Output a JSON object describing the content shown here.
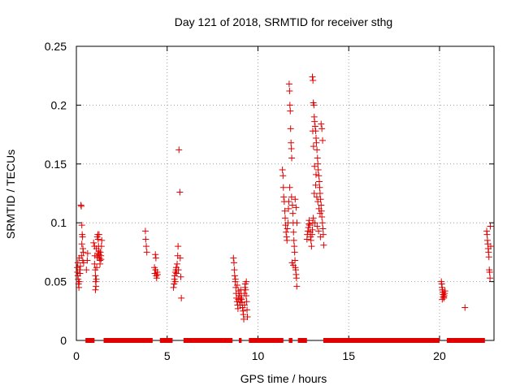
{
  "chart_data": {
    "type": "scatter",
    "title": "Day 121 of 2018, SRMTID for receiver sthg",
    "xlabel": "GPS time / hours",
    "ylabel": "SRMTID / TECUs",
    "xlim": [
      0,
      23
    ],
    "ylim": [
      0,
      0.25
    ],
    "xticks": [
      "0",
      "5",
      "10",
      "15",
      "20"
    ],
    "yticks": [
      "0",
      "0.05",
      "0.1",
      "0.15",
      "0.2",
      "0.25"
    ],
    "grid": true,
    "marker": "plus",
    "color": "#e00000",
    "series": [
      {
        "values": [
          [
            0.05,
            0.062
          ],
          [
            0.06,
            0.058
          ],
          [
            0.08,
            0.055
          ],
          [
            0.1,
            0.052
          ],
          [
            0.12,
            0.048
          ],
          [
            0.14,
            0.045
          ],
          [
            0.16,
            0.05
          ],
          [
            0.18,
            0.06
          ],
          [
            0.2,
            0.057
          ],
          [
            0.22,
            0.063
          ],
          [
            0.15,
            0.07
          ],
          [
            0.08,
            0.066
          ],
          [
            0.25,
            0.115
          ],
          [
            0.27,
            0.114
          ],
          [
            0.3,
            0.098
          ],
          [
            0.32,
            0.09
          ],
          [
            0.34,
            0.088
          ],
          [
            0.3,
            0.082
          ],
          [
            0.36,
            0.078
          ],
          [
            0.28,
            0.072
          ],
          [
            0.35,
            0.068
          ],
          [
            0.4,
            0.066
          ],
          [
            0.38,
            0.075
          ],
          [
            0.55,
            0.06
          ],
          [
            0.6,
            0.068
          ],
          [
            0.62,
            0.074
          ],
          [
            0.95,
            0.083
          ],
          [
            1.0,
            0.08
          ],
          [
            1.02,
            0.072
          ],
          [
            1.0,
            0.065
          ],
          [
            1.04,
            0.06
          ],
          [
            1.05,
            0.055
          ],
          [
            1.06,
            0.05
          ],
          [
            1.08,
            0.046
          ],
          [
            1.05,
            0.043
          ],
          [
            1.1,
            0.052
          ],
          [
            1.12,
            0.062
          ],
          [
            1.15,
            0.088
          ],
          [
            1.18,
            0.09
          ],
          [
            1.2,
            0.086
          ],
          [
            1.22,
            0.08
          ],
          [
            1.24,
            0.076
          ],
          [
            1.25,
            0.073
          ],
          [
            1.27,
            0.07
          ],
          [
            1.3,
            0.068
          ],
          [
            1.32,
            0.075
          ],
          [
            1.35,
            0.072
          ],
          [
            1.38,
            0.08
          ],
          [
            1.4,
            0.085
          ],
          [
            1.3,
            0.065
          ],
          [
            1.25,
            0.09
          ],
          [
            1.15,
            0.071
          ],
          [
            1.2,
            0.074
          ],
          [
            1.1,
            0.078
          ],
          [
            1.36,
            0.069
          ],
          [
            3.8,
            0.093
          ],
          [
            3.82,
            0.086
          ],
          [
            3.85,
            0.08
          ],
          [
            3.88,
            0.075
          ],
          [
            4.35,
            0.073
          ],
          [
            4.38,
            0.07
          ],
          [
            4.3,
            0.062
          ],
          [
            4.32,
            0.057
          ],
          [
            4.4,
            0.055
          ],
          [
            4.42,
            0.053
          ],
          [
            4.45,
            0.058
          ],
          [
            4.47,
            0.056
          ],
          [
            4.36,
            0.06
          ],
          [
            5.35,
            0.045
          ],
          [
            5.38,
            0.048
          ],
          [
            5.4,
            0.052
          ],
          [
            5.42,
            0.055
          ],
          [
            5.45,
            0.058
          ],
          [
            5.48,
            0.06
          ],
          [
            5.5,
            0.062
          ],
          [
            5.55,
            0.065
          ],
          [
            5.58,
            0.072
          ],
          [
            5.6,
            0.08
          ],
          [
            5.62,
            0.06
          ],
          [
            5.65,
            0.162
          ],
          [
            5.7,
            0.126
          ],
          [
            5.72,
            0.07
          ],
          [
            5.75,
            0.054
          ],
          [
            5.78,
            0.036
          ],
          [
            5.52,
            0.057
          ],
          [
            5.45,
            0.05
          ],
          [
            8.65,
            0.07
          ],
          [
            8.68,
            0.066
          ],
          [
            8.7,
            0.06
          ],
          [
            8.72,
            0.055
          ],
          [
            8.75,
            0.05
          ],
          [
            8.78,
            0.045
          ],
          [
            8.8,
            0.04
          ],
          [
            8.82,
            0.036
          ],
          [
            8.85,
            0.033
          ],
          [
            8.88,
            0.03
          ],
          [
            8.9,
            0.027
          ],
          [
            8.92,
            0.035
          ],
          [
            8.95,
            0.04
          ],
          [
            8.98,
            0.038
          ],
          [
            9.0,
            0.033
          ],
          [
            9.02,
            0.03
          ],
          [
            9.05,
            0.043
          ],
          [
            9.08,
            0.038
          ],
          [
            9.1,
            0.035
          ],
          [
            9.12,
            0.032
          ],
          [
            9.15,
            0.028
          ],
          [
            9.18,
            0.025
          ],
          [
            9.2,
            0.022
          ],
          [
            9.22,
            0.018
          ],
          [
            9.25,
            0.04
          ],
          [
            9.28,
            0.045
          ],
          [
            9.3,
            0.048
          ],
          [
            9.32,
            0.043
          ],
          [
            9.35,
            0.038
          ],
          [
            9.38,
            0.033
          ],
          [
            9.4,
            0.026
          ],
          [
            9.42,
            0.02
          ],
          [
            8.86,
            0.047
          ],
          [
            8.94,
            0.042
          ],
          [
            9.06,
            0.036
          ],
          [
            9.26,
            0.03
          ],
          [
            8.76,
            0.052
          ],
          [
            9.36,
            0.05
          ],
          [
            11.35,
            0.145
          ],
          [
            11.38,
            0.14
          ],
          [
            11.4,
            0.13
          ],
          [
            11.42,
            0.122
          ],
          [
            11.45,
            0.118
          ],
          [
            11.48,
            0.11
          ],
          [
            11.5,
            0.104
          ],
          [
            11.52,
            0.098
          ],
          [
            11.55,
            0.092
          ],
          [
            11.58,
            0.088
          ],
          [
            11.6,
            0.085
          ],
          [
            11.62,
            0.095
          ],
          [
            11.65,
            0.1
          ],
          [
            11.68,
            0.112
          ],
          [
            11.7,
            0.118
          ],
          [
            11.72,
            0.218
          ],
          [
            11.74,
            0.212
          ],
          [
            11.76,
            0.2
          ],
          [
            11.78,
            0.195
          ],
          [
            11.8,
            0.18
          ],
          [
            11.82,
            0.168
          ],
          [
            11.84,
            0.163
          ],
          [
            11.86,
            0.155
          ],
          [
            11.75,
            0.13
          ],
          [
            11.85,
            0.122
          ],
          [
            11.9,
            0.115
          ],
          [
            11.92,
            0.108
          ],
          [
            11.94,
            0.1
          ],
          [
            11.96,
            0.092
          ],
          [
            11.98,
            0.085
          ],
          [
            12.0,
            0.08
          ],
          [
            12.02,
            0.075
          ],
          [
            12.04,
            0.068
          ],
          [
            12.06,
            0.062
          ],
          [
            12.08,
            0.06
          ],
          [
            12.1,
            0.056
          ],
          [
            12.12,
            0.053
          ],
          [
            12.14,
            0.046
          ],
          [
            11.88,
            0.066
          ],
          [
            11.95,
            0.064
          ],
          [
            12.05,
            0.12
          ],
          [
            12.1,
            0.113
          ],
          [
            12.15,
            0.1
          ],
          [
            12.7,
            0.086
          ],
          [
            12.72,
            0.09
          ],
          [
            12.75,
            0.093
          ],
          [
            12.78,
            0.096
          ],
          [
            12.8,
            0.099
          ],
          [
            12.82,
            0.102
          ],
          [
            12.85,
            0.098
          ],
          [
            12.88,
            0.092
          ],
          [
            12.9,
            0.088
          ],
          [
            12.92,
            0.085
          ],
          [
            12.95,
            0.08
          ],
          [
            12.98,
            0.09
          ],
          [
            13.0,
            0.094
          ],
          [
            13.02,
            0.1
          ],
          [
            13.05,
            0.104
          ],
          [
            13.0,
            0.224
          ],
          [
            13.03,
            0.221
          ],
          [
            13.05,
            0.202
          ],
          [
            13.08,
            0.2
          ],
          [
            13.1,
            0.19
          ],
          [
            13.12,
            0.186
          ],
          [
            13.15,
            0.182
          ],
          [
            13.18,
            0.178
          ],
          [
            13.2,
            0.172
          ],
          [
            13.22,
            0.168
          ],
          [
            13.25,
            0.162
          ],
          [
            13.28,
            0.155
          ],
          [
            13.3,
            0.15
          ],
          [
            13.32,
            0.145
          ],
          [
            13.35,
            0.14
          ],
          [
            13.38,
            0.135
          ],
          [
            13.4,
            0.13
          ],
          [
            13.42,
            0.125
          ],
          [
            13.45,
            0.12
          ],
          [
            13.48,
            0.115
          ],
          [
            13.5,
            0.11
          ],
          [
            13.52,
            0.105
          ],
          [
            13.55,
            0.1
          ],
          [
            13.58,
            0.095
          ],
          [
            13.6,
            0.09
          ],
          [
            13.62,
            0.081
          ],
          [
            13.02,
            0.178
          ],
          [
            13.06,
            0.165
          ],
          [
            13.12,
            0.148
          ],
          [
            13.18,
            0.132
          ],
          [
            13.24,
            0.122
          ],
          [
            13.3,
            0.118
          ],
          [
            13.36,
            0.112
          ],
          [
            13.42,
            0.108
          ],
          [
            13.48,
            0.184
          ],
          [
            13.52,
            0.18
          ],
          [
            13.56,
            0.17
          ],
          [
            13.14,
            0.1
          ],
          [
            13.26,
            0.097
          ],
          [
            13.34,
            0.093
          ],
          [
            13.44,
            0.088
          ],
          [
            13.2,
            0.141
          ],
          [
            13.1,
            0.125
          ],
          [
            20.1,
            0.05
          ],
          [
            20.12,
            0.048
          ],
          [
            20.14,
            0.045
          ],
          [
            20.16,
            0.043
          ],
          [
            20.18,
            0.041
          ],
          [
            20.2,
            0.039
          ],
          [
            20.22,
            0.037
          ],
          [
            20.24,
            0.036
          ],
          [
            20.26,
            0.038
          ],
          [
            20.28,
            0.04
          ],
          [
            20.3,
            0.042
          ],
          [
            20.15,
            0.035
          ],
          [
            21.4,
            0.028
          ],
          [
            22.6,
            0.093
          ],
          [
            22.62,
            0.09
          ],
          [
            22.64,
            0.085
          ],
          [
            22.66,
            0.082
          ],
          [
            22.68,
            0.078
          ],
          [
            22.7,
            0.075
          ],
          [
            22.72,
            0.071
          ],
          [
            22.74,
            0.06
          ],
          [
            22.76,
            0.058
          ],
          [
            22.78,
            0.053
          ],
          [
            22.8,
            0.097
          ],
          [
            22.82,
            0.08
          ]
        ],
        "zero_runs": [
          [
            0.5,
            1.0
          ],
          [
            1.5,
            4.2
          ],
          [
            4.6,
            5.3
          ],
          [
            5.9,
            8.6
          ],
          [
            8.95,
            9.1
          ],
          [
            9.5,
            11.4
          ],
          [
            11.7,
            11.9
          ],
          [
            12.2,
            12.7
          ],
          [
            13.6,
            20.0
          ],
          [
            20.4,
            22.5
          ]
        ]
      }
    ]
  }
}
